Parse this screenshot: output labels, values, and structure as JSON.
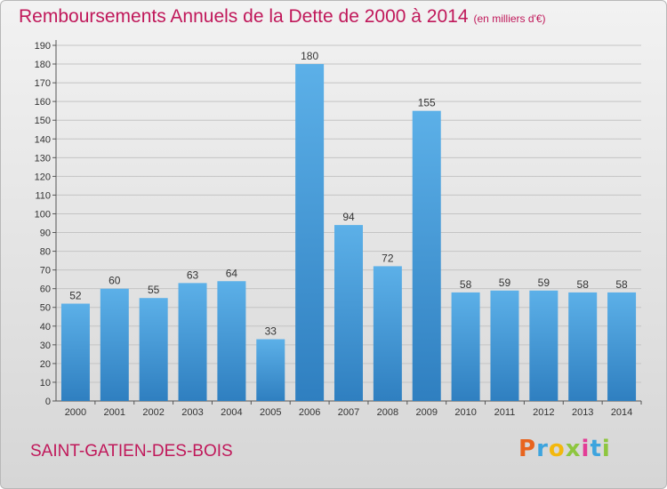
{
  "title": "Remboursements Annuels de la Dette de 2000 à 2014",
  "unit_note": "(en milliers d'€)",
  "commune": "SAINT-GATIEN-DES-BOIS",
  "logo": {
    "letters": [
      "P",
      "r",
      "o",
      "x",
      "i",
      "t",
      "i"
    ],
    "colors": [
      "#e8641e",
      "#3da4de",
      "#f3b80d",
      "#8ec63f",
      "#e33d96",
      "#3da4de",
      "#8ec63f"
    ]
  },
  "colors": {
    "title": "#c0185a",
    "bar_top": "#5cb0e8",
    "bar_bottom": "#2f7fc0",
    "grid": "#c4c4c4"
  },
  "chart_data": {
    "type": "bar",
    "categories": [
      "2000",
      "2001",
      "2002",
      "2003",
      "2004",
      "2005",
      "2006",
      "2007",
      "2008",
      "2009",
      "2010",
      "2011",
      "2012",
      "2013",
      "2014"
    ],
    "values": [
      52,
      60,
      55,
      63,
      64,
      33,
      180,
      94,
      72,
      155,
      58,
      59,
      59,
      58,
      58
    ],
    "ylim": [
      0,
      190
    ],
    "yticks": [
      0,
      10,
      20,
      30,
      40,
      50,
      60,
      70,
      80,
      90,
      100,
      110,
      120,
      130,
      140,
      150,
      160,
      170,
      180,
      190
    ],
    "grid": true,
    "data_labels": true
  }
}
